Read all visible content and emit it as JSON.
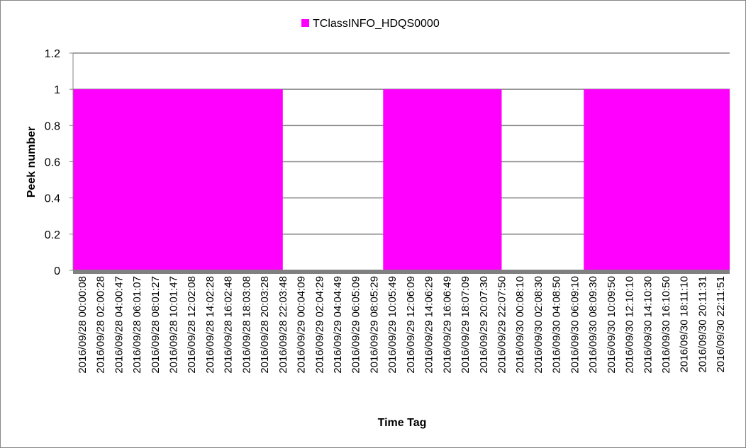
{
  "chart_data": {
    "type": "area",
    "xlabel": "Time Tag",
    "ylabel": "Peek number",
    "ylim": [
      0,
      1.2
    ],
    "yticks": [
      0,
      0.2,
      0.4,
      0.6,
      0.8,
      1,
      1.2
    ],
    "ytick_labels": [
      "0",
      "0.2",
      "0.4",
      "0.6",
      "0.8",
      "1",
      "1.2"
    ],
    "grid": true,
    "legend_position": "top-center",
    "x": [
      "2016/09/28 00:00:08",
      "2016/09/28 02:00:28",
      "2016/09/28 04:00:47",
      "2016/09/28 06:01:07",
      "2016/09/28 08:01:27",
      "2016/09/28 10:01:47",
      "2016/09/28 12:02:08",
      "2016/09/28 14:02:28",
      "2016/09/28 16:02:48",
      "2016/09/28 18:03:08",
      "2016/09/28 20:03:28",
      "2016/09/28 22:03:48",
      "2016/09/29 00:04:09",
      "2016/09/29 02:04:29",
      "2016/09/29 04:04:49",
      "2016/09/29 06:05:09",
      "2016/09/29 08:05:29",
      "2016/09/29 10:05:49",
      "2016/09/29 12:06:09",
      "2016/09/29 14:06:29",
      "2016/09/29 16:06:49",
      "2016/09/29 18:07:09",
      "2016/09/29 20:07:30",
      "2016/09/29 22:07:50",
      "2016/09/30 00:08:10",
      "2016/09/30 02:08:30",
      "2016/09/30 04:08:50",
      "2016/09/30 06:09:10",
      "2016/09/30 08:09:30",
      "2016/09/30 10:09:50",
      "2016/09/30 12:10:10",
      "2016/09/30 14:10:30",
      "2016/09/30 16:10:50",
      "2016/09/30 18:11:10",
      "2016/09/30 20:11:31",
      "2016/09/30 22:11:51"
    ],
    "series": [
      {
        "name": "TClassINFO_HDQS0000",
        "color": "#ff00ff",
        "values": [
          1,
          1,
          1,
          1,
          1,
          1,
          1,
          1,
          1,
          1,
          1,
          1,
          0,
          0,
          0,
          0,
          0,
          1,
          1,
          1,
          1,
          1,
          1,
          1,
          0,
          0,
          0,
          0,
          1,
          1,
          1,
          1,
          1,
          1,
          1,
          1
        ]
      }
    ]
  }
}
